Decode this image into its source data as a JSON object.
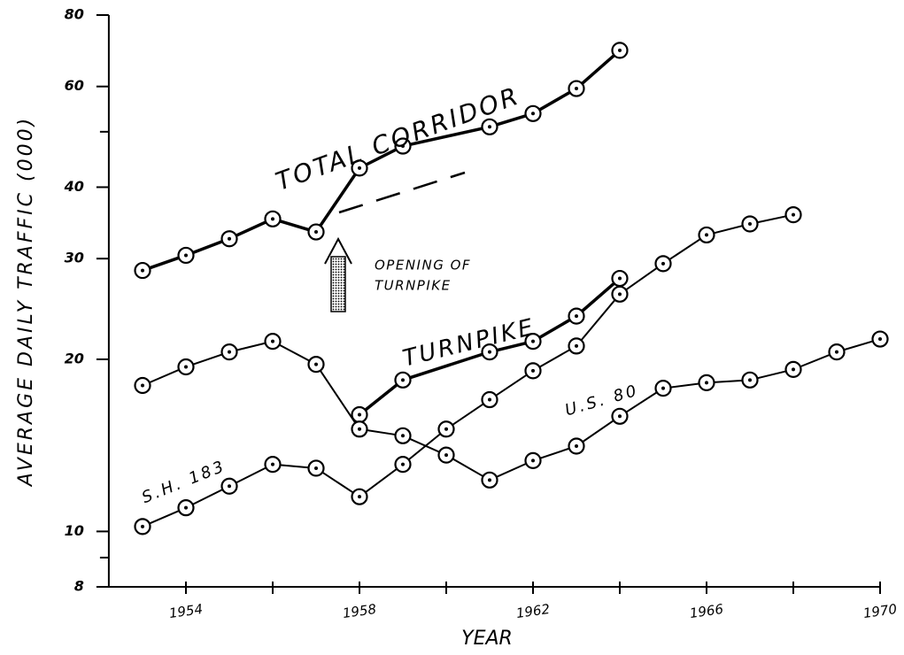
{
  "chart_data": {
    "type": "line",
    "ylabel": "AVERAGE DAILY TRAFFIC (000)",
    "xlabel": "YEAR",
    "yscale": "log",
    "xlim": [
      1952.1,
      1970
    ],
    "xticks": [
      1954,
      1958,
      1962,
      1966,
      1970
    ],
    "minor_xticks": [
      1956,
      1960,
      1964,
      1968
    ],
    "ylim": [
      8,
      80
    ],
    "yticks": [
      8,
      10,
      20,
      30,
      40,
      60,
      80
    ],
    "minor_yticks": [
      9,
      50
    ],
    "color": "#000000",
    "series": [
      {
        "name": "TOTAL CORRIDOR",
        "color": "#000000",
        "x": [
          1953,
          1954,
          1955,
          1956,
          1957,
          1958,
          1959,
          1961,
          1962,
          1963,
          1964
        ],
        "values": [
          28.6,
          30.4,
          32.5,
          35.2,
          33.4,
          43.2,
          47.2,
          51.0,
          53.8,
          59.5,
          69.4
        ]
      },
      {
        "name": "TURNPIKE",
        "color": "#000000",
        "x": [
          1958,
          1959,
          1961,
          1962,
          1963,
          1964
        ],
        "values": [
          16.0,
          18.4,
          20.6,
          21.5,
          23.8,
          27.7
        ]
      },
      {
        "name": "U.S. 80",
        "color": "#000000",
        "x": [
          1953,
          1954,
          1955,
          1956,
          1957,
          1958,
          1959,
          1960,
          1961,
          1962,
          1963,
          1964,
          1965,
          1966,
          1967,
          1968,
          1969,
          1970
        ],
        "values": [
          18.0,
          19.4,
          20.6,
          21.5,
          19.6,
          15.1,
          14.7,
          13.6,
          12.3,
          13.3,
          14.1,
          15.9,
          17.8,
          18.2,
          18.4,
          19.2,
          20.6,
          21.7
        ]
      },
      {
        "name": "S.H. 183",
        "color": "#000000",
        "x": [
          1953,
          1954,
          1955,
          1956,
          1957,
          1958,
          1959,
          1960,
          1961,
          1962,
          1963,
          1964,
          1965,
          1966,
          1967,
          1968
        ],
        "values": [
          10.2,
          11.0,
          12.0,
          13.1,
          12.9,
          11.5,
          13.1,
          15.1,
          17.0,
          19.1,
          21.1,
          26.0,
          29.4,
          33.0,
          34.5,
          35.8
        ]
      }
    ],
    "annotations": [
      "OPENING OF",
      "TURNPIKE"
    ]
  }
}
